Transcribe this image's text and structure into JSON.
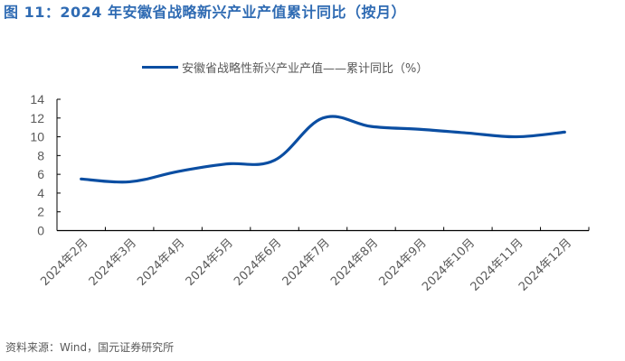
{
  "title": "图 11：2024 年安徽省战略新兴产业产值累计同比（按月）",
  "source": "资料来源：Wind，国元证券研究所",
  "colors": {
    "title": "#2f6bb3",
    "series": "#0b4ea2",
    "axis": "#000000",
    "text": "#595959"
  },
  "chart_data": {
    "type": "line",
    "title": "图 11：2024 年安徽省战略新兴产业产值累计同比（按月）",
    "xlabel": "",
    "ylabel": "",
    "ylim": [
      0,
      14
    ],
    "yticks": [
      0,
      2,
      4,
      6,
      8,
      10,
      12,
      14
    ],
    "grid": false,
    "legend_position": "top",
    "smooth": true,
    "categories": [
      "2024年2月",
      "2024年3月",
      "2024年4月",
      "2024年5月",
      "2024年6月",
      "2024年7月",
      "2024年8月",
      "2024年9月",
      "2024年10月",
      "2024年11月",
      "2024年12月"
    ],
    "series": [
      {
        "name": "安徽省战略性新兴产业产值——累计同比（%）",
        "values": [
          5.5,
          5.2,
          6.3,
          7.1,
          7.5,
          12.0,
          11.1,
          10.8,
          10.4,
          10.0,
          10.5
        ]
      }
    ]
  }
}
